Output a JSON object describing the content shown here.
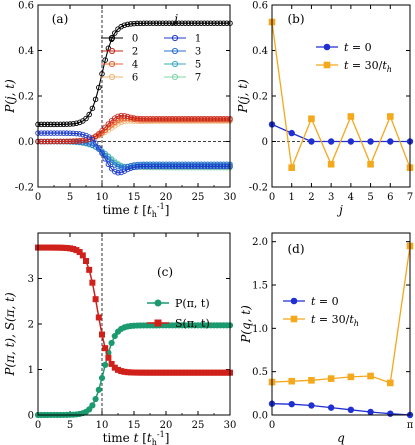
{
  "chart_data": [
    {
      "panel": "(a)",
      "type": "line",
      "ylabel": "P(j, t)",
      "xlabel": "time t [t_h^-1]",
      "xlabel_parts": [
        "time ",
        "t",
        " [",
        "t",
        "h",
        "-1",
        "]"
      ],
      "ylabel_parts": [
        "P",
        "(",
        "j",
        ", ",
        "t",
        ")"
      ],
      "xlim": [
        0,
        30
      ],
      "ylim": [
        -0.2,
        0.6
      ],
      "xticks": [
        0,
        5,
        10,
        15,
        20,
        25,
        30
      ],
      "yticks": [
        -0.2,
        0.0,
        0.2,
        0.4,
        0.6
      ],
      "ytick_labels": [
        "-0.2",
        "0.0",
        "0.2",
        "0.4",
        "0.6"
      ],
      "vline_x": 10,
      "hline_y": 0,
      "legend_title": "j",
      "legend_position": "inside, right",
      "series": [
        {
          "name": "0",
          "color": "#000000",
          "final": 0.52,
          "start": 0.075,
          "mid": 10,
          "width": 0.9
        },
        {
          "name": "1",
          "color": "#1f3cc9",
          "final": -0.11,
          "start": 0.037,
          "mid": 9.8,
          "width": 0.9,
          "undershoot": -0.035
        },
        {
          "name": "2",
          "color": "#c8261c",
          "final": 0.1,
          "start": 0.0,
          "mid": 10.2,
          "width": 1.0,
          "undershoot": 0.02
        },
        {
          "name": "3",
          "color": "#2b6fd1",
          "final": -0.1,
          "start": 0.0,
          "mid": 10.2,
          "width": 1.0,
          "undershoot": -0.02
        },
        {
          "name": "4",
          "color": "#e6602e",
          "final": 0.095,
          "start": 0.0,
          "mid": 10.5,
          "width": 1.2,
          "undershoot": 0.015
        },
        {
          "name": "5",
          "color": "#3aa9c6",
          "final": -0.105,
          "start": 0.0,
          "mid": 10.5,
          "width": 1.2,
          "undershoot": -0.015
        },
        {
          "name": "6",
          "color": "#f0b677",
          "final": 0.09,
          "start": 0.0,
          "mid": 10.8,
          "width": 1.4,
          "undershoot": 0.01
        },
        {
          "name": "7",
          "color": "#7fd4a8",
          "final": -0.115,
          "start": 0.0,
          "mid": 10.8,
          "width": 1.4,
          "undershoot": -0.01
        }
      ]
    },
    {
      "panel": "(b)",
      "type": "line",
      "ylabel": "P(j, t)",
      "xlabel": "j",
      "xlim": [
        0,
        7
      ],
      "ylim": [
        -0.2,
        0.6
      ],
      "xticks": [
        0,
        1,
        2,
        3,
        4,
        5,
        6,
        7
      ],
      "yticks": [
        -0.2,
        0.0,
        0.2,
        0.4,
        0.6
      ],
      "ytick_labels": [
        "-0.2",
        "0",
        "0.2",
        "0.4",
        "0.6"
      ],
      "hline_y": 0,
      "legend_position": "top-right",
      "series": [
        {
          "name": "t = 0",
          "color": "#1f2fd1",
          "marker": "circle",
          "x": [
            0,
            1,
            2,
            3,
            4,
            5,
            6,
            7
          ],
          "y": [
            0.075,
            0.037,
            0.0,
            0.0,
            0.0,
            0.0,
            0.0,
            0.0
          ]
        },
        {
          "name": "t = 30/t_h",
          "color": "#f4a81c",
          "marker": "square",
          "x": [
            0,
            1,
            2,
            3,
            4,
            5,
            6,
            7
          ],
          "y": [
            0.525,
            -0.115,
            0.1,
            -0.1,
            0.11,
            -0.1,
            0.11,
            -0.115
          ]
        }
      ],
      "legend_labels": [
        {
          "pre": "t",
          "mid": " = 0",
          "sub": ""
        },
        {
          "pre": "t",
          "mid": " = 30/",
          "sub_base": "t",
          "sub": "h"
        }
      ]
    },
    {
      "panel": "(c)",
      "type": "line",
      "ylabel": "P(π, t), S(π, t)",
      "xlabel": "time t [t_h^-1]",
      "xlim": [
        0,
        30
      ],
      "ylim": [
        0,
        4
      ],
      "xticks": [
        0,
        5,
        10,
        15,
        20,
        25,
        30
      ],
      "yticks": [
        0,
        1,
        2,
        3
      ],
      "vline_x": 10,
      "legend_position": "right-center",
      "series": [
        {
          "name": "P(π, t)",
          "color": "#1a9a6e",
          "marker": "circle",
          "start": 0.0,
          "final": 1.97,
          "mid": 10.3,
          "width": 0.85
        },
        {
          "name": "S(π, t)",
          "color": "#d0201b",
          "marker": "square",
          "start": 3.68,
          "final": 0.93,
          "mid": 9.3,
          "width": 0.85
        }
      ]
    },
    {
      "panel": "(d)",
      "type": "line",
      "ylabel": "P(q, t)",
      "xlabel": "q",
      "xlim": [
        0,
        3.1416
      ],
      "ylim": [
        0,
        2.1
      ],
      "xticks": [
        0,
        3.1416
      ],
      "xtick_labels": [
        "0",
        "π"
      ],
      "yticks": [
        0.0,
        0.5,
        1.0,
        1.5,
        2.0
      ],
      "ytick_labels": [
        "0.0",
        "0.5",
        "1.0",
        "1.5",
        "2.0"
      ],
      "legend_position": "top-left",
      "series": [
        {
          "name": "t = 0",
          "color": "#1f2fd1",
          "marker": "circle",
          "x": [
            0,
            0.4488,
            0.8976,
            1.3464,
            1.7952,
            2.244,
            2.6928,
            3.1416
          ],
          "y": [
            0.13,
            0.125,
            0.11,
            0.085,
            0.06,
            0.035,
            0.015,
            0.0
          ]
        },
        {
          "name": "t = 30/t_h",
          "color": "#f4a81c",
          "marker": "square",
          "x": [
            0,
            0.4488,
            0.8976,
            1.3464,
            1.7952,
            2.244,
            2.6928,
            3.1416
          ],
          "y": [
            0.38,
            0.39,
            0.4,
            0.42,
            0.44,
            0.45,
            0.37,
            1.95
          ]
        }
      ]
    }
  ]
}
